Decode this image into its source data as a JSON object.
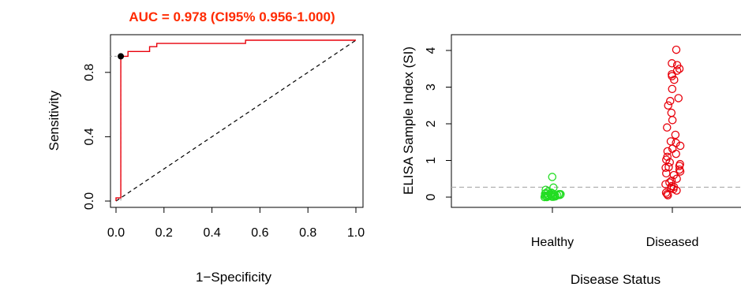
{
  "chart_data": [
    {
      "type": "line",
      "title": "AUC = 0.978 (CI95% 0.956-1.000)",
      "title_color": "#ff2a00",
      "xlabel": "1−Specificity",
      "ylabel": "Sensitivity",
      "xlim": [
        0,
        1
      ],
      "ylim": [
        0,
        1
      ],
      "x_ticks": [
        "0.0",
        "0.2",
        "0.4",
        "0.6",
        "0.8",
        "1.0"
      ],
      "y_ticks": [
        "0.0",
        "0.4",
        "0.8"
      ],
      "grid": false,
      "series": [
        {
          "color": "#e8000b",
          "style": "step",
          "x": [
            0,
            0,
            0.02,
            0.02,
            0.02,
            0.05,
            0.05,
            0.14,
            0.14,
            0.17,
            0.17,
            0.54,
            0.54,
            1.0
          ],
          "y": [
            0,
            0.02,
            0.02,
            0.74,
            0.9,
            0.9,
            0.93,
            0.93,
            0.96,
            0.96,
            0.98,
            0.98,
            1.0,
            1.0
          ]
        }
      ],
      "reference_line": {
        "color": "#000000",
        "style": "dashed",
        "x": [
          0,
          1
        ],
        "y": [
          0,
          1
        ]
      },
      "optimal_point": {
        "x": 0.02,
        "y": 0.9,
        "color": "#000000"
      },
      "guide_color": "#999999"
    },
    {
      "type": "scatter",
      "xlabel": "Disease Status",
      "ylabel": "ELISA Sample Index (SI)",
      "categories": [
        "Healthy",
        "Diseased"
      ],
      "ylim": [
        -0.2,
        4.2
      ],
      "y_ticks": [
        "0",
        "1",
        "2",
        "3",
        "4"
      ],
      "grid": false,
      "threshold": {
        "y": 0.27,
        "color": "#aaaaaa",
        "style": "dashed"
      },
      "series": [
        {
          "category": "Healthy",
          "color": "#22dd22",
          "values": [
            0.55,
            0.26,
            0.2,
            0.15,
            0.12,
            0.1,
            0.09,
            0.08,
            0.07,
            0.06,
            0.05,
            0.05,
            0.04,
            0.04,
            0.03,
            0.03,
            0.02,
            0.02,
            0.01,
            0.01,
            0.0,
            0.0,
            0.06,
            0.08,
            0.11
          ]
        },
        {
          "category": "Diseased",
          "color": "#e8000b",
          "values": [
            4.02,
            3.65,
            3.6,
            3.5,
            3.45,
            3.35,
            3.3,
            3.2,
            2.95,
            2.7,
            2.62,
            2.5,
            2.3,
            2.1,
            1.9,
            1.7,
            1.52,
            1.48,
            1.4,
            1.32,
            1.25,
            1.18,
            1.1,
            1.02,
            0.95,
            0.9,
            0.85,
            0.82,
            0.8,
            0.75,
            0.7,
            0.65,
            0.6,
            0.5,
            0.45,
            0.4,
            0.35,
            0.3,
            0.28,
            0.25,
            0.22,
            0.18,
            0.12,
            0.08,
            0.05
          ]
        }
      ]
    }
  ]
}
